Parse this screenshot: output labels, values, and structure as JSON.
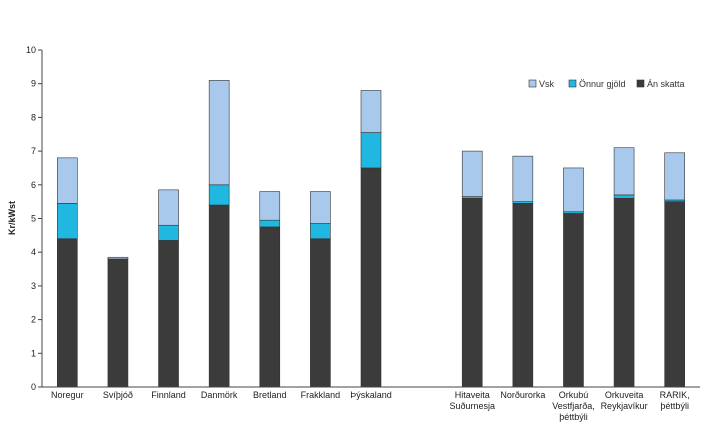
{
  "chart_data": {
    "type": "bar",
    "stacked": true,
    "ylabel": "Kr/kWst",
    "xlabel": "",
    "title": "",
    "ylim": [
      0,
      10
    ],
    "y_ticks": [
      "0",
      "1",
      "2",
      "3",
      "4",
      "5",
      "6",
      "7",
      "8",
      "9",
      "10"
    ],
    "grid": false,
    "legend_position": "top-right",
    "categories": [
      "Noregur",
      "Svíþjóð",
      "Finnland",
      "Danmörk",
      "Bretland",
      "Frakkland",
      "Þýskaland",
      "",
      "Hitaveita Suðurnesja",
      "Norðurorka",
      "Orkubú Vestfjarða, þéttbýli",
      "Orkuveita Reykjavíkur",
      "RARIK, þéttbýli"
    ],
    "category_lines": [
      [
        "Noregur"
      ],
      [
        "Svíþjóð"
      ],
      [
        "Finnland"
      ],
      [
        "Danmörk"
      ],
      [
        "Bretland"
      ],
      [
        "Frakkland"
      ],
      [
        "Þýskaland"
      ],
      [],
      [
        "Hitaveita",
        "Suðurnesja"
      ],
      [
        "Norðurorka"
      ],
      [
        "Orkubú",
        "Vestfjarða,",
        "þéttbýli"
      ],
      [
        "Orkuveita",
        "Reykjavíkur"
      ],
      [
        "RARIK,",
        "þéttbýli"
      ]
    ],
    "series": [
      {
        "name": "Án skatta",
        "color": "#3b3b3b",
        "values": [
          4.4,
          3.8,
          4.35,
          5.4,
          4.75,
          4.4,
          6.5,
          null,
          5.6,
          5.45,
          5.15,
          5.6,
          5.5
        ]
      },
      {
        "name": "Önnur gjöld",
        "color": "#20b8e0",
        "values": [
          1.05,
          0.0,
          0.45,
          0.6,
          0.2,
          0.45,
          1.05,
          null,
          0.05,
          0.05,
          0.05,
          0.1,
          0.05
        ]
      },
      {
        "name": "Vsk",
        "color": "#a9c9ec",
        "values": [
          1.35,
          0.05,
          1.05,
          3.1,
          0.85,
          0.95,
          1.25,
          null,
          1.35,
          1.35,
          1.3,
          1.4,
          1.4
        ]
      }
    ],
    "legend_order": [
      "Vsk",
      "Önnur gjöld",
      "Án skatta"
    ],
    "legend_labels": [
      "Vsk",
      "Önnur gjöld",
      "Án skatta"
    ]
  }
}
